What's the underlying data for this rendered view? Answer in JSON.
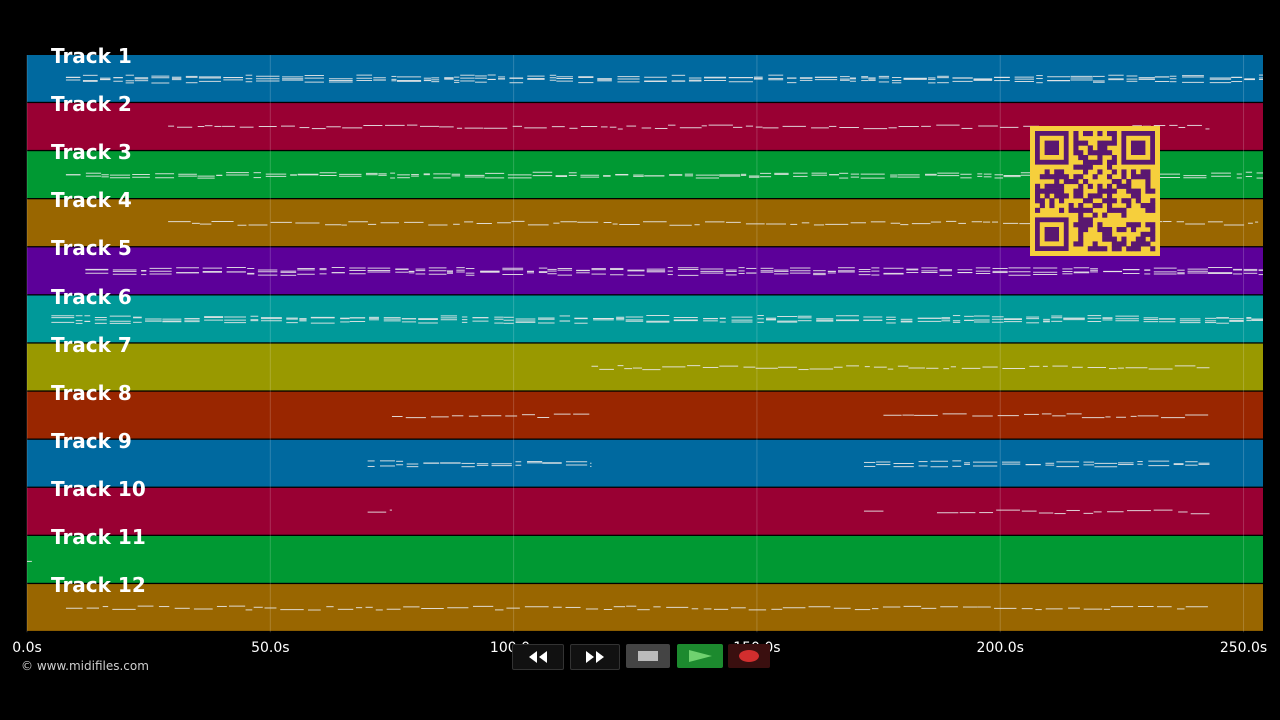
{
  "tracks": [
    {
      "label": "Track 1",
      "color": "#00699f"
    },
    {
      "label": "Track 2",
      "color": "#990033"
    },
    {
      "label": "Track 3",
      "color": "#009933"
    },
    {
      "label": "Track 4",
      "color": "#996600"
    },
    {
      "label": "Track 5",
      "color": "#5c0099"
    },
    {
      "label": "Track 6",
      "color": "#009999"
    },
    {
      "label": "Track 7",
      "color": "#999900"
    },
    {
      "label": "Track 8",
      "color": "#992600"
    },
    {
      "label": "Track 9",
      "color": "#00699f"
    },
    {
      "label": "Track 10",
      "color": "#990033"
    },
    {
      "label": "Track 11",
      "color": "#009933"
    },
    {
      "label": "Track 12",
      "color": "#996600"
    }
  ],
  "timeline": {
    "ticks": [
      "0.0s",
      "50.0s",
      "100.0s",
      "150.0s",
      "200.0s",
      "250.0s"
    ],
    "tick_values": [
      0,
      50,
      100,
      150,
      200,
      250
    ],
    "x_range": [
      0,
      254
    ]
  },
  "copyright": "© www.midifiles.com",
  "transport": {
    "rewind_icon": "rewind-icon",
    "forward_icon": "fast-forward-icon",
    "stop_icon": "stop-icon",
    "play_icon": "play-icon",
    "record_icon": "record-icon",
    "play_color": "#1c8a2e",
    "record_color": "#d22e2e"
  },
  "qr_code": {
    "color": "#f6cf3c",
    "module_color": "#5a1870"
  }
}
